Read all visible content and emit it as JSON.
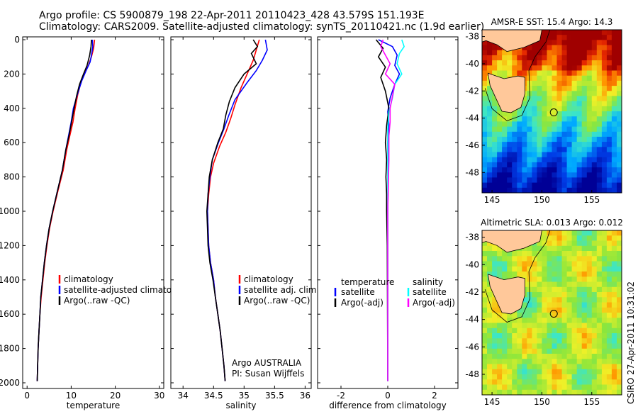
{
  "header": {
    "line1": "Argo profile: CS 5900879_198 22-Apr-2011 20110423_428 43.579S 151.193E",
    "line2": "Climatology: CARS2009. Satellite-adjusted climatology: synTS_20110421.nc (1.9d earlier)"
  },
  "credit": "CSIRO 27-Apr-2011 10:31:02",
  "colors": {
    "climatology": "#ff0000",
    "satellite": "#0000ff",
    "argo": "#000000",
    "sat_salinity": "#00ffff",
    "argo_salinity": "#ff00ff"
  },
  "chart_data": [
    {
      "type": "line",
      "xlabel": "temperature",
      "ylabel": "",
      "xlim": [
        -1,
        31
      ],
      "ylim": [
        2000,
        0
      ],
      "xticks": [
        0,
        10,
        20,
        30
      ],
      "yticks": [
        0,
        200,
        400,
        600,
        800,
        1000,
        1200,
        1400,
        1600,
        1800,
        2000
      ],
      "legend": [
        "climatology",
        "satellite-adjusted climatology",
        "Argo(..raw -QC)"
      ],
      "series": [
        {
          "name": "climatology",
          "color": "#ff0000",
          "points": [
            [
              15.3,
              0
            ],
            [
              15.1,
              50
            ],
            [
              14.6,
              100
            ],
            [
              13.9,
              150
            ],
            [
              12.9,
              200
            ],
            [
              12.1,
              260
            ],
            [
              11.5,
              320
            ],
            [
              10.9,
              400
            ],
            [
              10.4,
              480
            ],
            [
              9.7,
              560
            ],
            [
              9.0,
              640
            ],
            [
              8.2,
              760
            ],
            [
              7.0,
              880
            ],
            [
              5.9,
              1000
            ],
            [
              5.1,
              1100
            ],
            [
              4.5,
              1200
            ],
            [
              4.0,
              1300
            ],
            [
              3.6,
              1400
            ],
            [
              3.2,
              1500
            ],
            [
              2.9,
              1600
            ],
            [
              2.7,
              1700
            ],
            [
              2.5,
              1800
            ],
            [
              2.4,
              1900
            ],
            [
              2.3,
              1990
            ]
          ]
        },
        {
          "name": "satellite-adjusted climatology",
          "color": "#0000ff",
          "points": [
            [
              14.8,
              0
            ],
            [
              14.9,
              40
            ],
            [
              14.6,
              90
            ],
            [
              14.3,
              130
            ],
            [
              13.4,
              180
            ],
            [
              12.4,
              240
            ],
            [
              11.4,
              320
            ],
            [
              10.5,
              400
            ],
            [
              10.0,
              480
            ],
            [
              9.4,
              560
            ],
            [
              8.8,
              640
            ],
            [
              8.0,
              760
            ],
            [
              6.9,
              880
            ],
            [
              5.8,
              1000
            ],
            [
              5.0,
              1100
            ],
            [
              4.4,
              1200
            ],
            [
              3.9,
              1300
            ],
            [
              3.5,
              1400
            ],
            [
              3.1,
              1500
            ],
            [
              2.9,
              1600
            ],
            [
              2.7,
              1700
            ],
            [
              2.5,
              1800
            ],
            [
              2.4,
              1900
            ],
            [
              2.3,
              1990
            ]
          ]
        },
        {
          "name": "Argo(..raw -QC)",
          "color": "#000000",
          "points": [
            [
              14.6,
              0
            ],
            [
              14.5,
              40
            ],
            [
              14.2,
              90
            ],
            [
              13.6,
              150
            ],
            [
              12.8,
              200
            ],
            [
              11.9,
              260
            ],
            [
              11.2,
              330
            ],
            [
              10.6,
              410
            ],
            [
              10.1,
              480
            ],
            [
              9.5,
              560
            ],
            [
              8.8,
              640
            ],
            [
              8.0,
              760
            ],
            [
              6.9,
              880
            ],
            [
              5.8,
              1000
            ],
            [
              5.0,
              1100
            ],
            [
              4.4,
              1200
            ],
            [
              3.9,
              1300
            ],
            [
              3.5,
              1400
            ],
            [
              3.1,
              1500
            ],
            [
              2.9,
              1600
            ],
            [
              2.7,
              1700
            ],
            [
              2.5,
              1800
            ],
            [
              2.4,
              1900
            ],
            [
              2.3,
              1990
            ]
          ]
        }
      ]
    },
    {
      "type": "line",
      "xlabel": "salinity",
      "xlim": [
        33.8,
        36.1
      ],
      "ylim": [
        2000,
        0
      ],
      "xticks": [
        34,
        34.5,
        35,
        35.5,
        36
      ],
      "yticks": [],
      "legend": [
        "climatology",
        "satellite adj. clim.",
        "Argo(..raw -QC)"
      ],
      "annotation": [
        "Argo AUSTRALIA",
        "PI: Susan Wijffels"
      ],
      "series": [
        {
          "name": "climatology",
          "color": "#ff0000",
          "points": [
            [
              35.25,
              0
            ],
            [
              35.2,
              60
            ],
            [
              35.15,
              120
            ],
            [
              35.05,
              200
            ],
            [
              34.95,
              280
            ],
            [
              34.85,
              380
            ],
            [
              34.78,
              460
            ],
            [
              34.7,
              540
            ],
            [
              34.6,
              620
            ],
            [
              34.5,
              720
            ],
            [
              34.45,
              800
            ],
            [
              34.42,
              900
            ],
            [
              34.4,
              1000
            ],
            [
              34.41,
              1100
            ],
            [
              34.42,
              1200
            ],
            [
              34.45,
              1300
            ],
            [
              34.5,
              1400
            ],
            [
              34.53,
              1500
            ],
            [
              34.57,
              1600
            ],
            [
              34.61,
              1700
            ],
            [
              34.64,
              1800
            ],
            [
              34.67,
              1900
            ],
            [
              34.69,
              1990
            ]
          ]
        },
        {
          "name": "satellite adj. clim.",
          "color": "#0000ff",
          "points": [
            [
              35.35,
              0
            ],
            [
              35.38,
              60
            ],
            [
              35.3,
              120
            ],
            [
              35.2,
              180
            ],
            [
              35.05,
              250
            ],
            [
              34.85,
              350
            ],
            [
              34.75,
              440
            ],
            [
              34.67,
              520
            ],
            [
              34.58,
              600
            ],
            [
              34.48,
              700
            ],
            [
              34.44,
              800
            ],
            [
              34.41,
              900
            ],
            [
              34.4,
              1000
            ],
            [
              34.41,
              1100
            ],
            [
              34.42,
              1200
            ],
            [
              34.45,
              1300
            ],
            [
              34.5,
              1400
            ],
            [
              34.53,
              1500
            ],
            [
              34.57,
              1600
            ],
            [
              34.61,
              1700
            ],
            [
              34.64,
              1800
            ],
            [
              34.67,
              1900
            ],
            [
              34.69,
              1990
            ]
          ]
        },
        {
          "name": "Argo(..raw -QC)",
          "color": "#000000",
          "points": [
            [
              35.15,
              0
            ],
            [
              35.22,
              40
            ],
            [
              35.12,
              80
            ],
            [
              35.2,
              140
            ],
            [
              35.0,
              200
            ],
            [
              34.85,
              280
            ],
            [
              34.76,
              360
            ],
            [
              34.7,
              440
            ],
            [
              34.66,
              520
            ],
            [
              34.57,
              600
            ],
            [
              34.48,
              700
            ],
            [
              34.43,
              800
            ],
            [
              34.41,
              900
            ],
            [
              34.39,
              1000
            ],
            [
              34.4,
              1100
            ],
            [
              34.41,
              1200
            ],
            [
              34.44,
              1300
            ],
            [
              34.49,
              1400
            ],
            [
              34.53,
              1500
            ],
            [
              34.57,
              1600
            ],
            [
              34.61,
              1700
            ],
            [
              34.64,
              1800
            ],
            [
              34.67,
              1900
            ],
            [
              34.69,
              1990
            ]
          ]
        }
      ]
    },
    {
      "type": "line",
      "xlabel": "difference from climatology",
      "xlim": [
        -3,
        3
      ],
      "ylim": [
        2000,
        0
      ],
      "xticks": [
        -2,
        0,
        2
      ],
      "yticks": [],
      "legend_left_title": "temperature",
      "legend_left": [
        "satellite",
        "Argo(-adj)"
      ],
      "legend_right_title": "salinity",
      "legend_right": [
        "satellite",
        "Argo(-adj)"
      ],
      "series": [
        {
          "name": "satellite",
          "color": "#0000ff",
          "points": [
            [
              -0.4,
              0
            ],
            [
              0.2,
              40
            ],
            [
              0.4,
              90
            ],
            [
              0.3,
              150
            ],
            [
              0.5,
              200
            ],
            [
              0.3,
              260
            ],
            [
              0.1,
              340
            ],
            [
              0.0,
              420
            ],
            [
              0.05,
              500
            ],
            [
              0.0,
              600
            ],
            [
              0.02,
              800
            ],
            [
              0.0,
              1000
            ],
            [
              0.0,
              1200
            ],
            [
              0.0,
              1500
            ],
            [
              0.0,
              1990
            ]
          ]
        },
        {
          "name": "Argo(-adj)",
          "color": "#000000",
          "points": [
            [
              -0.5,
              0
            ],
            [
              -0.2,
              50
            ],
            [
              -0.4,
              100
            ],
            [
              -0.1,
              160
            ],
            [
              -0.3,
              220
            ],
            [
              -0.1,
              300
            ],
            [
              0.05,
              400
            ],
            [
              -0.05,
              500
            ],
            [
              -0.1,
              600
            ],
            [
              -0.05,
              700
            ],
            [
              -0.08,
              800
            ],
            [
              -0.05,
              900
            ],
            [
              -0.05,
              1000
            ],
            [
              -0.02,
              1200
            ],
            [
              0.0,
              1990
            ]
          ]
        },
        {
          "name": "satellite",
          "color": "#00ffff",
          "points": [
            [
              0.6,
              0
            ],
            [
              0.7,
              40
            ],
            [
              0.5,
              80
            ],
            [
              0.4,
              140
            ],
            [
              0.6,
              200
            ],
            [
              0.3,
              260
            ],
            [
              0.2,
              340
            ],
            [
              0.05,
              420
            ],
            [
              0.0,
              520
            ],
            [
              0.0,
              700
            ],
            [
              0.0,
              1000
            ],
            [
              0.0,
              1500
            ],
            [
              0.0,
              1990
            ]
          ]
        },
        {
          "name": "Argo(-adj)",
          "color": "#ff00ff",
          "points": [
            [
              -0.2,
              0
            ],
            [
              -0.3,
              40
            ],
            [
              -0.1,
              90
            ],
            [
              0.1,
              140
            ],
            [
              -0.1,
              200
            ],
            [
              0.3,
              260
            ],
            [
              0.2,
              330
            ],
            [
              0.1,
              400
            ],
            [
              0.1,
              480
            ],
            [
              0.05,
              560
            ],
            [
              0.05,
              700
            ],
            [
              0.0,
              1000
            ],
            [
              0.0,
              1500
            ],
            [
              0.0,
              1990
            ]
          ]
        }
      ]
    },
    {
      "type": "heatmap",
      "title": "AMSR-E SST: 15.4 Argo: 14.3",
      "xlim": [
        144,
        158
      ],
      "ylim": [
        -49.5,
        -37.5
      ],
      "xticks": [
        145,
        150,
        155
      ],
      "yticks": [
        -38,
        -40,
        -42,
        -44,
        -46,
        -48
      ],
      "marker": {
        "lon": 151.193,
        "lat": -43.579
      }
    },
    {
      "type": "heatmap",
      "title": "Altimetric SLA: 0.013 Argo: 0.012",
      "xlim": [
        144,
        158
      ],
      "ylim": [
        -49.5,
        -37.5
      ],
      "xticks": [
        145,
        150,
        155
      ],
      "yticks": [
        -38,
        -40,
        -42,
        -44,
        -46,
        -48
      ],
      "marker": {
        "lon": 151.193,
        "lat": -43.579
      }
    }
  ]
}
